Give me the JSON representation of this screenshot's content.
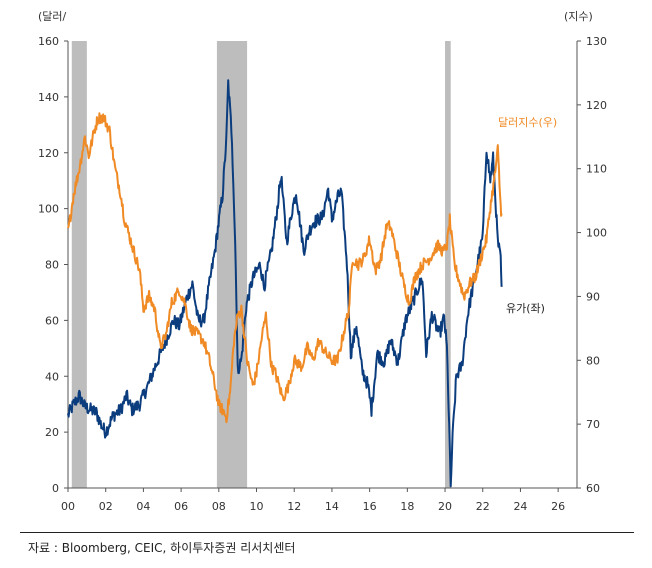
{
  "chart_data": {
    "type": "line",
    "title": "",
    "left_axis": {
      "unit_label": "(달러/",
      "ylim": [
        0,
        160
      ],
      "ticks": [
        0,
        20,
        40,
        60,
        80,
        100,
        120,
        140,
        160
      ]
    },
    "right_axis": {
      "unit_label": "(지수)",
      "ylim": [
        60,
        130
      ],
      "ticks": [
        60,
        70,
        80,
        90,
        100,
        110,
        120,
        130
      ]
    },
    "x_axis": {
      "xlim": [
        2000,
        2027
      ],
      "ticks": [
        {
          "value": 2000,
          "label": "00"
        },
        {
          "value": 2002,
          "label": "02"
        },
        {
          "value": 2004,
          "label": "04"
        },
        {
          "value": 2006,
          "label": "06"
        },
        {
          "value": 2008,
          "label": "08"
        },
        {
          "value": 2010,
          "label": "10"
        },
        {
          "value": 2012,
          "label": "12"
        },
        {
          "value": 2014,
          "label": "14"
        },
        {
          "value": 2016,
          "label": "16"
        },
        {
          "value": 2018,
          "label": "18"
        },
        {
          "value": 2020,
          "label": "20"
        },
        {
          "value": 2022,
          "label": "22"
        },
        {
          "value": 2024,
          "label": "24"
        },
        {
          "value": 2026,
          "label": "26"
        }
      ]
    },
    "recession_bands": [
      [
        2000.2,
        2001.0
      ],
      [
        2007.9,
        2009.5
      ],
      [
        2020.0,
        2020.3
      ]
    ],
    "series": [
      {
        "name": "유가(좌)",
        "axis": "left",
        "color": "#0b3d7e",
        "points": [
          [
            2000.0,
            26
          ],
          [
            2000.3,
            30
          ],
          [
            2000.6,
            33
          ],
          [
            2000.9,
            29
          ],
          [
            2001.2,
            28
          ],
          [
            2001.5,
            27
          ],
          [
            2001.8,
            22
          ],
          [
            2002.0,
            20
          ],
          [
            2002.4,
            26
          ],
          [
            2002.8,
            28
          ],
          [
            2003.1,
            33
          ],
          [
            2003.4,
            28
          ],
          [
            2003.8,
            30
          ],
          [
            2004.2,
            36
          ],
          [
            2004.6,
            43
          ],
          [
            2004.9,
            48
          ],
          [
            2005.2,
            53
          ],
          [
            2005.6,
            60
          ],
          [
            2005.9,
            58
          ],
          [
            2006.3,
            68
          ],
          [
            2006.6,
            73
          ],
          [
            2006.9,
            60
          ],
          [
            2007.2,
            60
          ],
          [
            2007.5,
            73
          ],
          [
            2007.8,
            85
          ],
          [
            2007.95,
            93
          ],
          [
            2008.2,
            105
          ],
          [
            2008.4,
            125
          ],
          [
            2008.5,
            145
          ],
          [
            2008.7,
            125
          ],
          [
            2008.9,
            80
          ],
          [
            2009.0,
            42
          ],
          [
            2009.2,
            46
          ],
          [
            2009.45,
            65
          ],
          [
            2009.8,
            75
          ],
          [
            2010.2,
            80
          ],
          [
            2010.4,
            72
          ],
          [
            2010.8,
            85
          ],
          [
            2011.1,
            100
          ],
          [
            2011.3,
            112
          ],
          [
            2011.6,
            88
          ],
          [
            2011.9,
            100
          ],
          [
            2012.1,
            106
          ],
          [
            2012.5,
            85
          ],
          [
            2012.8,
            92
          ],
          [
            2013.0,
            95
          ],
          [
            2013.5,
            97
          ],
          [
            2013.8,
            107
          ],
          [
            2014.0,
            96
          ],
          [
            2014.3,
            104
          ],
          [
            2014.5,
            106
          ],
          [
            2014.8,
            80
          ],
          [
            2015.0,
            48
          ],
          [
            2015.3,
            58
          ],
          [
            2015.6,
            42
          ],
          [
            2015.9,
            37
          ],
          [
            2016.1,
            28
          ],
          [
            2016.4,
            48
          ],
          [
            2016.8,
            45
          ],
          [
            2017.1,
            53
          ],
          [
            2017.5,
            45
          ],
          [
            2017.9,
            60
          ],
          [
            2018.2,
            65
          ],
          [
            2018.6,
            72
          ],
          [
            2018.8,
            75
          ],
          [
            2019.0,
            48
          ],
          [
            2019.3,
            62
          ],
          [
            2019.7,
            55
          ],
          [
            2019.95,
            61
          ],
          [
            2020.1,
            50
          ],
          [
            2020.22,
            22
          ],
          [
            2020.3,
            0
          ],
          [
            2020.4,
            18
          ],
          [
            2020.6,
            40
          ],
          [
            2020.9,
            44
          ],
          [
            2021.2,
            62
          ],
          [
            2021.5,
            73
          ],
          [
            2021.8,
            83
          ],
          [
            2022.0,
            90
          ],
          [
            2022.2,
            122
          ],
          [
            2022.4,
            110
          ],
          [
            2022.55,
            118
          ],
          [
            2022.8,
            88
          ],
          [
            2022.95,
            82
          ],
          [
            2023.0,
            72
          ]
        ]
      },
      {
        "name": "달러지수(우)",
        "axis": "right",
        "color": "#f08a24",
        "points": [
          [
            2000.0,
            100
          ],
          [
            2000.3,
            106
          ],
          [
            2000.6,
            110
          ],
          [
            2000.9,
            115
          ],
          [
            2001.1,
            112
          ],
          [
            2001.4,
            116
          ],
          [
            2001.6,
            118
          ],
          [
            2001.9,
            118
          ],
          [
            2002.2,
            116
          ],
          [
            2002.5,
            110
          ],
          [
            2002.8,
            106
          ],
          [
            2003.0,
            102
          ],
          [
            2003.4,
            98
          ],
          [
            2003.8,
            94
          ],
          [
            2004.0,
            88
          ],
          [
            2004.3,
            90
          ],
          [
            2004.6,
            88
          ],
          [
            2004.9,
            82
          ],
          [
            2005.2,
            84
          ],
          [
            2005.5,
            89
          ],
          [
            2005.9,
            91
          ],
          [
            2006.2,
            89
          ],
          [
            2006.5,
            85
          ],
          [
            2006.9,
            84
          ],
          [
            2007.2,
            83
          ],
          [
            2007.5,
            80
          ],
          [
            2007.8,
            76
          ],
          [
            2008.0,
            73
          ],
          [
            2008.25,
            72
          ],
          [
            2008.4,
            71
          ],
          [
            2008.6,
            75
          ],
          [
            2008.8,
            83
          ],
          [
            2009.0,
            87
          ],
          [
            2009.2,
            88
          ],
          [
            2009.5,
            80
          ],
          [
            2009.8,
            76
          ],
          [
            2010.0,
            78
          ],
          [
            2010.3,
            84
          ],
          [
            2010.5,
            87
          ],
          [
            2010.8,
            79
          ],
          [
            2011.0,
            78
          ],
          [
            2011.4,
            74
          ],
          [
            2011.7,
            76
          ],
          [
            2012.0,
            80
          ],
          [
            2012.4,
            79
          ],
          [
            2012.7,
            82
          ],
          [
            2013.0,
            80
          ],
          [
            2013.3,
            83
          ],
          [
            2013.7,
            81
          ],
          [
            2014.0,
            80
          ],
          [
            2014.3,
            80
          ],
          [
            2014.6,
            84
          ],
          [
            2014.9,
            88
          ],
          [
            2015.1,
            96
          ],
          [
            2015.4,
            95
          ],
          [
            2015.7,
            96
          ],
          [
            2016.0,
            99
          ],
          [
            2016.3,
            94
          ],
          [
            2016.6,
            96
          ],
          [
            2016.9,
            101
          ],
          [
            2017.1,
            101
          ],
          [
            2017.5,
            96
          ],
          [
            2017.8,
            92
          ],
          [
            2018.1,
            89
          ],
          [
            2018.4,
            93
          ],
          [
            2018.8,
            95
          ],
          [
            2019.2,
            96
          ],
          [
            2019.6,
            98
          ],
          [
            2019.9,
            97
          ],
          [
            2020.1,
            98
          ],
          [
            2020.25,
            102
          ],
          [
            2020.5,
            95
          ],
          [
            2020.8,
            92
          ],
          [
            2021.0,
            90
          ],
          [
            2021.3,
            92
          ],
          [
            2021.6,
            93
          ],
          [
            2021.9,
            96
          ],
          [
            2022.2,
            99
          ],
          [
            2022.4,
            104
          ],
          [
            2022.6,
            108
          ],
          [
            2022.8,
            113
          ],
          [
            2022.95,
            104
          ],
          [
            2023.0,
            103
          ]
        ]
      }
    ],
    "annotations": [
      {
        "text": "달러지수(우)",
        "color": "#f08a24"
      },
      {
        "text": "유가(좌)",
        "color": "#222222"
      }
    ]
  },
  "source_text": "자료 : Bloomberg, CEIC, 하이투자증권 리서치센터"
}
